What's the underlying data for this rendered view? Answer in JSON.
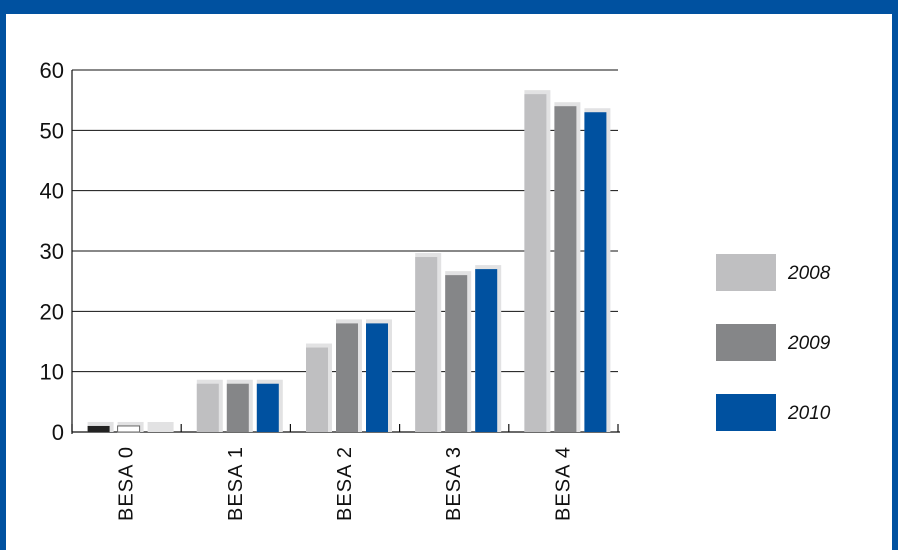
{
  "chart_data": {
    "type": "bar",
    "categories": [
      "BESA 0",
      "BESA 1",
      "BESA 2",
      "BESA 3",
      "BESA 4"
    ],
    "series": [
      {
        "name": "2008",
        "values": [
          1,
          8,
          14,
          29,
          56
        ],
        "color": "#bfbfc1",
        "shadow": "#e2e2e3"
      },
      {
        "name": "2009",
        "values": [
          1,
          8,
          18,
          26,
          54
        ],
        "color": "#858688",
        "shadow": "#e2e2e3"
      },
      {
        "name": "2010",
        "values": [
          0,
          8,
          18,
          27,
          53
        ],
        "color": "#0051a0",
        "shadow": "#e2e2e3"
      }
    ],
    "besa0_colors": [
      "#222222",
      "#ffffff",
      "#ffffff"
    ],
    "ylim": [
      0,
      60
    ],
    "yticks": [
      0,
      10,
      20,
      30,
      40,
      50,
      60
    ],
    "grid": true,
    "legend_position": "right",
    "title": "",
    "xlabel": "",
    "ylabel": ""
  },
  "colors": {
    "frame": "#0051a0",
    "grid": "#111111"
  }
}
